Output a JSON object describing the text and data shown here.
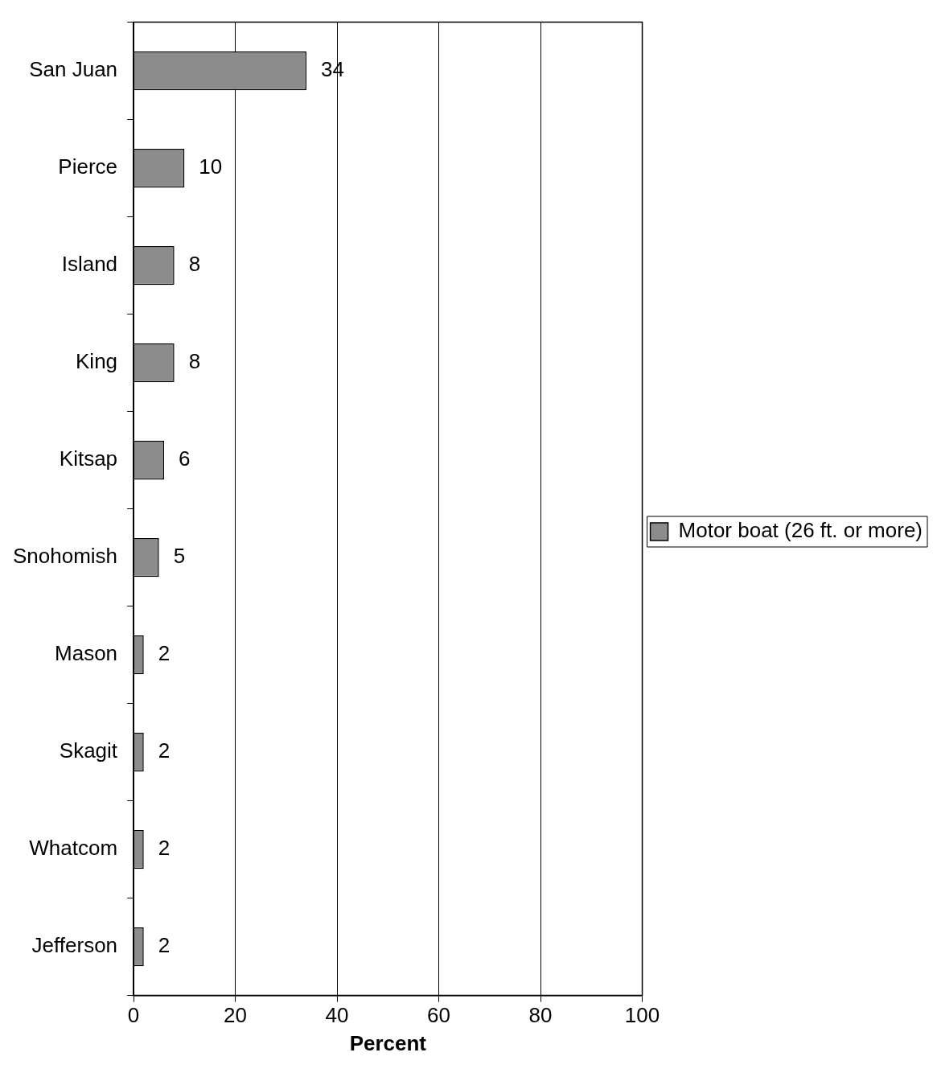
{
  "chart_data": {
    "type": "bar",
    "orientation": "horizontal",
    "xlabel": "Percent",
    "categories": [
      "San Juan",
      "Pierce",
      "Island",
      "King",
      "Kitsap",
      "Snohomish",
      "Mason",
      "Skagit",
      "Whatcom",
      "Jefferson"
    ],
    "series": [
      {
        "name": "Motor boat (26 ft. or more)",
        "color": "#8c8c8c",
        "values": [
          34,
          10,
          8,
          8,
          6,
          5,
          2,
          2,
          2,
          2
        ]
      }
    ],
    "xlim": [
      0,
      100
    ],
    "xticks": [
      0,
      20,
      40,
      60,
      80,
      100
    ],
    "grid": "x",
    "legend": "right",
    "data_labels": true
  }
}
